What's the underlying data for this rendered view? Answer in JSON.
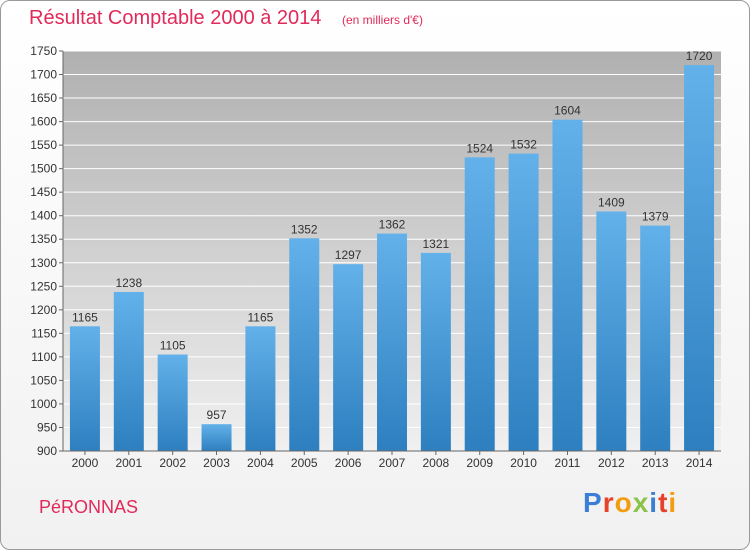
{
  "chart_data": {
    "type": "bar",
    "title": "Résultat Comptable 2000 à 2014",
    "subtitle": "(en milliers d'€)",
    "categories": [
      "2000",
      "2001",
      "2002",
      "2003",
      "2004",
      "2005",
      "2006",
      "2007",
      "2008",
      "2009",
      "2010",
      "2011",
      "2012",
      "2013",
      "2014"
    ],
    "values": [
      1165,
      1238,
      1105,
      957,
      1165,
      1352,
      1297,
      1362,
      1321,
      1524,
      1532,
      1604,
      1409,
      1379,
      1720
    ],
    "ylim": [
      900,
      1750
    ],
    "yticks": [
      900,
      950,
      1000,
      1050,
      1100,
      1150,
      1200,
      1250,
      1300,
      1350,
      1400,
      1450,
      1500,
      1550,
      1600,
      1650,
      1700,
      1750
    ],
    "xlabel": "",
    "ylabel": "",
    "grid": true,
    "colors": {
      "bar_light": "#63b1ea",
      "bar_dark": "#2d7fbf",
      "plot_bg_top": "#b0b0b0",
      "plot_bg_bottom": "#f0f0f0",
      "grid": "#ffffff"
    }
  },
  "footer": {
    "town": "PéRONNAS",
    "brand": "Proxiti",
    "brand_colors": [
      "#3a7fd5",
      "#e8412a",
      "#f39c12",
      "#8bc34a",
      "#3a7fd5",
      "#e8412a",
      "#f39c12"
    ]
  }
}
